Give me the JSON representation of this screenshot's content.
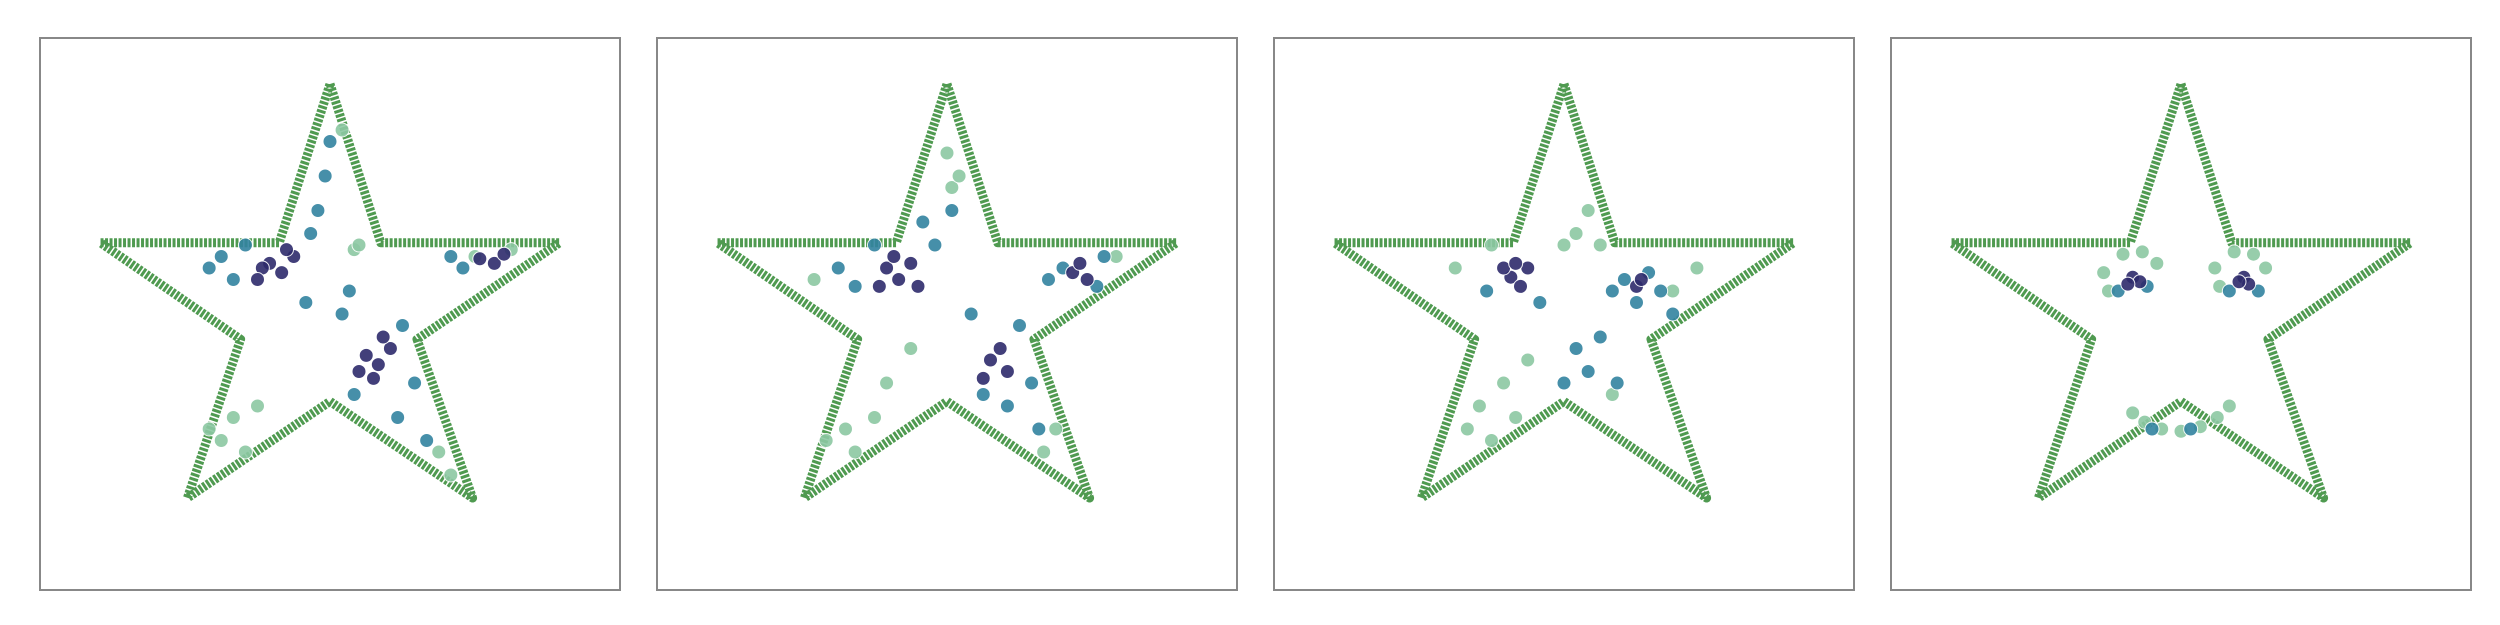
{
  "chart_data": [
    {
      "type": "scatter",
      "xlim": [
        -1.2,
        1.2
      ],
      "ylim": [
        -1.2,
        1.2
      ],
      "outline": {
        "color": "#4f9a50",
        "x": [
          0,
          0.21,
          0.95,
          0.36,
          0.59,
          0,
          -0.59,
          -0.37,
          -0.95,
          -0.21,
          0
        ],
        "y": [
          1.0,
          0.31,
          0.31,
          -0.11,
          -0.8,
          -0.38,
          -0.8,
          -0.11,
          0.31,
          0.31,
          1.0
        ]
      },
      "series": [
        {
          "color": "#8cc8a3",
          "x": [
            -0.5,
            -0.45,
            -0.4,
            -0.35,
            -0.3,
            0.1,
            0.12,
            0.45,
            0.5,
            0.6,
            0.75,
            0.05
          ],
          "y": [
            -0.5,
            -0.55,
            -0.45,
            -0.6,
            -0.4,
            0.28,
            0.3,
            -0.6,
            -0.7,
            0.25,
            0.28,
            0.8
          ]
        },
        {
          "color": "#3383a0",
          "x": [
            -0.45,
            -0.4,
            -0.35,
            -0.05,
            -0.02,
            0.0,
            -0.08,
            0.05,
            0.3,
            0.35,
            0.28,
            0.1,
            0.5,
            0.55,
            -0.5,
            0.4,
            0.08,
            -0.1
          ],
          "y": [
            0.25,
            0.15,
            0.3,
            0.45,
            0.6,
            0.75,
            0.35,
            0.0,
            -0.05,
            -0.3,
            -0.45,
            -0.35,
            0.25,
            0.2,
            0.2,
            -0.55,
            0.1,
            0.05
          ]
        },
        {
          "color": "#2e2b6c",
          "x": [
            -0.25,
            -0.2,
            -0.15,
            -0.28,
            -0.18,
            0.15,
            0.2,
            0.25,
            0.18,
            0.22,
            0.62,
            0.68,
            0.72,
            -0.3,
            0.12
          ],
          "y": [
            0.22,
            0.18,
            0.25,
            0.2,
            0.28,
            -0.18,
            -0.22,
            -0.15,
            -0.28,
            -0.1,
            0.24,
            0.22,
            0.26,
            0.15,
            -0.25
          ]
        }
      ]
    },
    {
      "type": "scatter",
      "xlim": [
        -1.2,
        1.2
      ],
      "ylim": [
        -1.2,
        1.2
      ],
      "outline": {
        "color": "#4f9a50",
        "x": [
          0,
          0.21,
          0.95,
          0.36,
          0.59,
          0,
          -0.59,
          -0.37,
          -0.95,
          -0.21,
          0
        ],
        "y": [
          1.0,
          0.31,
          0.31,
          -0.11,
          -0.8,
          -0.38,
          -0.8,
          -0.11,
          0.31,
          0.31,
          1.0
        ]
      },
      "series": [
        {
          "color": "#8cc8a3",
          "x": [
            -0.5,
            -0.42,
            -0.38,
            -0.3,
            -0.25,
            0.0,
            0.02,
            0.4,
            0.45,
            0.7,
            -0.55,
            0.05,
            -0.15
          ],
          "y": [
            -0.55,
            -0.5,
            -0.6,
            -0.45,
            -0.3,
            0.7,
            0.55,
            -0.6,
            -0.5,
            0.25,
            0.15,
            0.6,
            -0.15
          ]
        },
        {
          "color": "#3383a0",
          "x": [
            -0.45,
            -0.38,
            -0.1,
            -0.05,
            0.02,
            0.1,
            0.3,
            0.35,
            0.25,
            0.42,
            0.48,
            0.62,
            0.65,
            -0.3,
            0.15,
            0.38
          ],
          "y": [
            0.2,
            0.12,
            0.4,
            0.3,
            0.45,
            0.0,
            -0.05,
            -0.3,
            -0.4,
            0.15,
            0.2,
            0.12,
            0.25,
            0.3,
            -0.35,
            -0.5
          ]
        },
        {
          "color": "#2e2b6c",
          "x": [
            -0.25,
            -0.2,
            -0.15,
            -0.22,
            -0.12,
            0.18,
            0.22,
            0.25,
            0.15,
            0.52,
            0.58,
            0.55,
            -0.28
          ],
          "y": [
            0.2,
            0.15,
            0.22,
            0.25,
            0.12,
            -0.2,
            -0.15,
            -0.25,
            -0.28,
            0.18,
            0.15,
            0.22,
            0.12
          ]
        }
      ]
    },
    {
      "type": "scatter",
      "xlim": [
        -1.2,
        1.2
      ],
      "ylim": [
        -1.2,
        1.2
      ],
      "outline": {
        "color": "#4f9a50",
        "x": [
          0,
          0.21,
          0.95,
          0.36,
          0.59,
          0,
          -0.59,
          -0.37,
          -0.95,
          -0.21,
          0
        ],
        "y": [
          1.0,
          0.31,
          0.31,
          -0.11,
          -0.8,
          -0.38,
          -0.8,
          -0.11,
          0.31,
          0.31,
          1.0
        ]
      },
      "series": [
        {
          "color": "#8cc8a3",
          "x": [
            -0.4,
            -0.35,
            -0.3,
            -0.25,
            -0.2,
            -0.15,
            0.05,
            0.1,
            0.15,
            0.45,
            0.55,
            -0.45,
            -0.3,
            0.0,
            0.2
          ],
          "y": [
            -0.5,
            -0.4,
            -0.55,
            -0.3,
            -0.45,
            -0.2,
            0.35,
            0.45,
            0.3,
            0.1,
            0.2,
            0.2,
            0.3,
            0.3,
            -0.35
          ]
        },
        {
          "color": "#3383a0",
          "x": [
            0.2,
            0.25,
            0.3,
            0.35,
            0.4,
            0.05,
            0.1,
            0.15,
            0.0,
            0.22,
            0.45,
            -0.32,
            -0.1
          ],
          "y": [
            0.1,
            0.15,
            0.05,
            0.18,
            0.1,
            -0.15,
            -0.25,
            -0.1,
            -0.3,
            -0.3,
            0.0,
            0.1,
            0.05
          ]
        },
        {
          "color": "#2e2b6c",
          "x": [
            -0.22,
            -0.18,
            -0.15,
            -0.25,
            -0.2,
            0.3,
            0.32
          ],
          "y": [
            0.16,
            0.12,
            0.2,
            0.2,
            0.22,
            0.12,
            0.15
          ]
        }
      ]
    },
    {
      "type": "scatter",
      "xlim": [
        -1.2,
        1.2
      ],
      "ylim": [
        -1.2,
        1.2
      ],
      "outline": {
        "color": "#4f9a50",
        "x": [
          0,
          0.21,
          0.95,
          0.36,
          0.59,
          0,
          -0.59,
          -0.37,
          -0.95,
          -0.21,
          0
        ],
        "y": [
          1.0,
          0.31,
          0.31,
          -0.11,
          -0.8,
          -0.38,
          -0.8,
          -0.11,
          0.31,
          0.31,
          1.0
        ]
      },
      "series": [
        {
          "color": "#8cc8a3",
          "x": [
            -0.32,
            -0.3,
            -0.24,
            -0.16,
            -0.1,
            0.14,
            0.16,
            0.22,
            0.3,
            0.35,
            -0.2,
            -0.15,
            -0.08,
            0.0,
            0.08,
            0.15,
            0.2
          ],
          "y": [
            0.18,
            0.1,
            0.26,
            0.27,
            0.22,
            0.2,
            0.12,
            0.27,
            0.26,
            0.2,
            -0.43,
            -0.47,
            -0.5,
            -0.51,
            -0.49,
            -0.45,
            -0.4
          ]
        },
        {
          "color": "#3383a0",
          "x": [
            -0.26,
            -0.14,
            0.2,
            0.32,
            -0.12,
            0.04
          ],
          "y": [
            0.1,
            0.12,
            0.1,
            0.1,
            -0.5,
            -0.5
          ]
        },
        {
          "color": "#2e2b6c",
          "x": [
            -0.2,
            -0.17,
            -0.22,
            0.26,
            0.28,
            0.24
          ],
          "y": [
            0.16,
            0.14,
            0.13,
            0.16,
            0.13,
            0.14
          ]
        }
      ]
    }
  ]
}
